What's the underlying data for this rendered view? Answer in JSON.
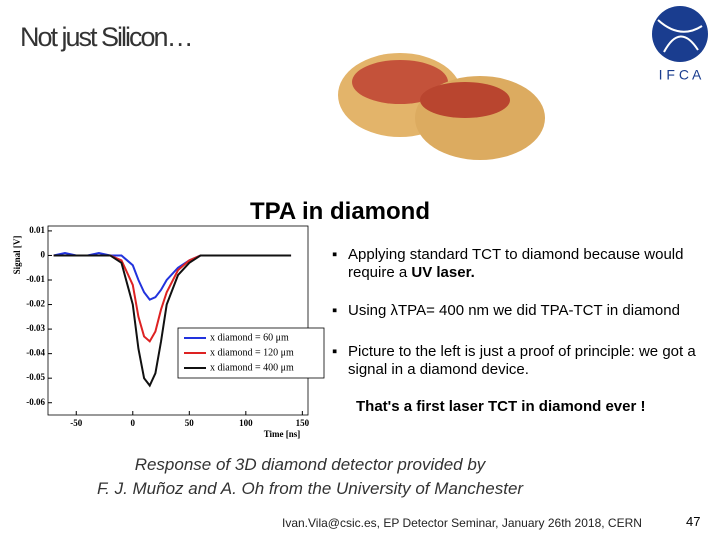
{
  "header": {
    "title": "Not just Silicon…",
    "logo_text": "I F C A"
  },
  "section_title": "TPA in diamond",
  "bullets": [
    {
      "text": "Applying standard TCT to diamond because would require a ",
      "bold": "UV laser."
    },
    {
      "text": "Using λTPA= 400 nm we did TPA-TCT in diamond"
    },
    {
      "text": "Picture to the left is just a proof of principle: we got a signal in a diamond device."
    }
  ],
  "highlight": "That's a first laser TCT in diamond ever !",
  "caption": [
    "Response of 3D diamond detector provided by",
    "F. J. Muñoz and A. Oh from the University of Manchester"
  ],
  "footer": "Ivan.Vila@csic.es, EP Detector Seminar, January 26th 2018, CERN",
  "page_number": "47",
  "chart_data": {
    "type": "line",
    "x_label": "Time [ns]",
    "y_label": "Signal [V]",
    "x": [
      -70,
      -60,
      -50,
      -40,
      -30,
      -20,
      -10,
      0,
      5,
      10,
      15,
      20,
      25,
      30,
      40,
      50,
      60,
      80,
      100,
      120,
      140
    ],
    "series": [
      {
        "name": "x diamond = 60 μm",
        "color": "#2233dd",
        "values": [
          0,
          0.001,
          0,
          0,
          0.001,
          0,
          0,
          -0.004,
          -0.01,
          -0.015,
          -0.018,
          -0.017,
          -0.014,
          -0.01,
          -0.005,
          -0.002,
          0,
          0,
          0,
          0,
          0
        ]
      },
      {
        "name": "x diamond = 120 μm",
        "color": "#dd2222",
        "values": [
          0,
          0,
          0,
          0,
          0,
          0,
          -0.002,
          -0.012,
          -0.025,
          -0.033,
          -0.035,
          -0.031,
          -0.022,
          -0.015,
          -0.006,
          -0.002,
          0,
          0,
          0,
          0,
          0
        ]
      },
      {
        "name": "x diamond = 400 μm",
        "color": "#111111",
        "values": [
          0,
          0,
          0,
          0,
          0,
          0,
          -0.003,
          -0.02,
          -0.038,
          -0.05,
          -0.053,
          -0.048,
          -0.035,
          -0.02,
          -0.008,
          -0.003,
          0,
          0,
          0,
          0,
          0
        ]
      }
    ],
    "xlim": [
      -75,
      155
    ],
    "xticks": [
      -50,
      0,
      50,
      100,
      150
    ],
    "ylim": [
      -0.065,
      0.012
    ],
    "yticks": [
      0.01,
      0,
      -0.01,
      -0.02,
      -0.03,
      -0.04,
      -0.05,
      -0.06
    ],
    "legend": "lower-right"
  }
}
